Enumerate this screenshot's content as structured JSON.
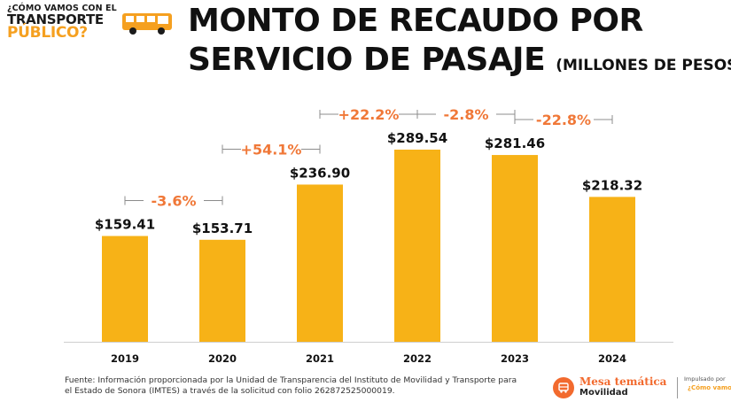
{
  "logo": {
    "line1": "¿CÓMO VAMOS CON EL",
    "line2": "TRANSPORTE",
    "line3": "PÚBLICO?",
    "icon": "bus-icon"
  },
  "title": {
    "line1": "MONTO DE RECAUDO POR",
    "line2": "SERVICIO DE PASAJE",
    "unit": "(MILLONES DE PESOS)"
  },
  "chart_data": {
    "type": "bar",
    "categories": [
      "2019",
      "2020",
      "2021",
      "2022",
      "2023",
      "2024"
    ],
    "values": [
      159.41,
      153.71,
      236.9,
      289.54,
      281.46,
      218.32
    ],
    "value_labels": [
      "$159.41",
      "$153.71",
      "$236.90",
      "$289.54",
      "$281.46",
      "$218.32"
    ],
    "changes": [
      {
        "from": "2019",
        "to": "2020",
        "label": "-3.6%"
      },
      {
        "from": "2020",
        "to": "2021",
        "label": "+54.1%"
      },
      {
        "from": "2021",
        "to": "2022",
        "label": "+22.2%"
      },
      {
        "from": "2022",
        "to": "2023",
        "label": "-2.8%"
      },
      {
        "from": "2023",
        "to": "2024",
        "label": "-22.8%"
      }
    ],
    "ylim": [
      0,
      300
    ],
    "grid": false,
    "colors": {
      "bar": "#f7b217",
      "change": "#f07838",
      "axis": "#cfcfcf"
    }
  },
  "footer": {
    "source_line1": "Fuente: Información proporcionada por la Unidad de Transparencia del Instituto de Movilidad y Transporte para",
    "source_line2": "el Estado de Sonora (IMTES) a través de la solicitud con folio 262872525000019."
  },
  "brand": {
    "name": "Mesa temática",
    "topic": "Movilidad",
    "icon": "bus-circle-icon",
    "sponsor_label": "Impulsado por",
    "sponsor_name": "¿Cómo vamos?"
  }
}
